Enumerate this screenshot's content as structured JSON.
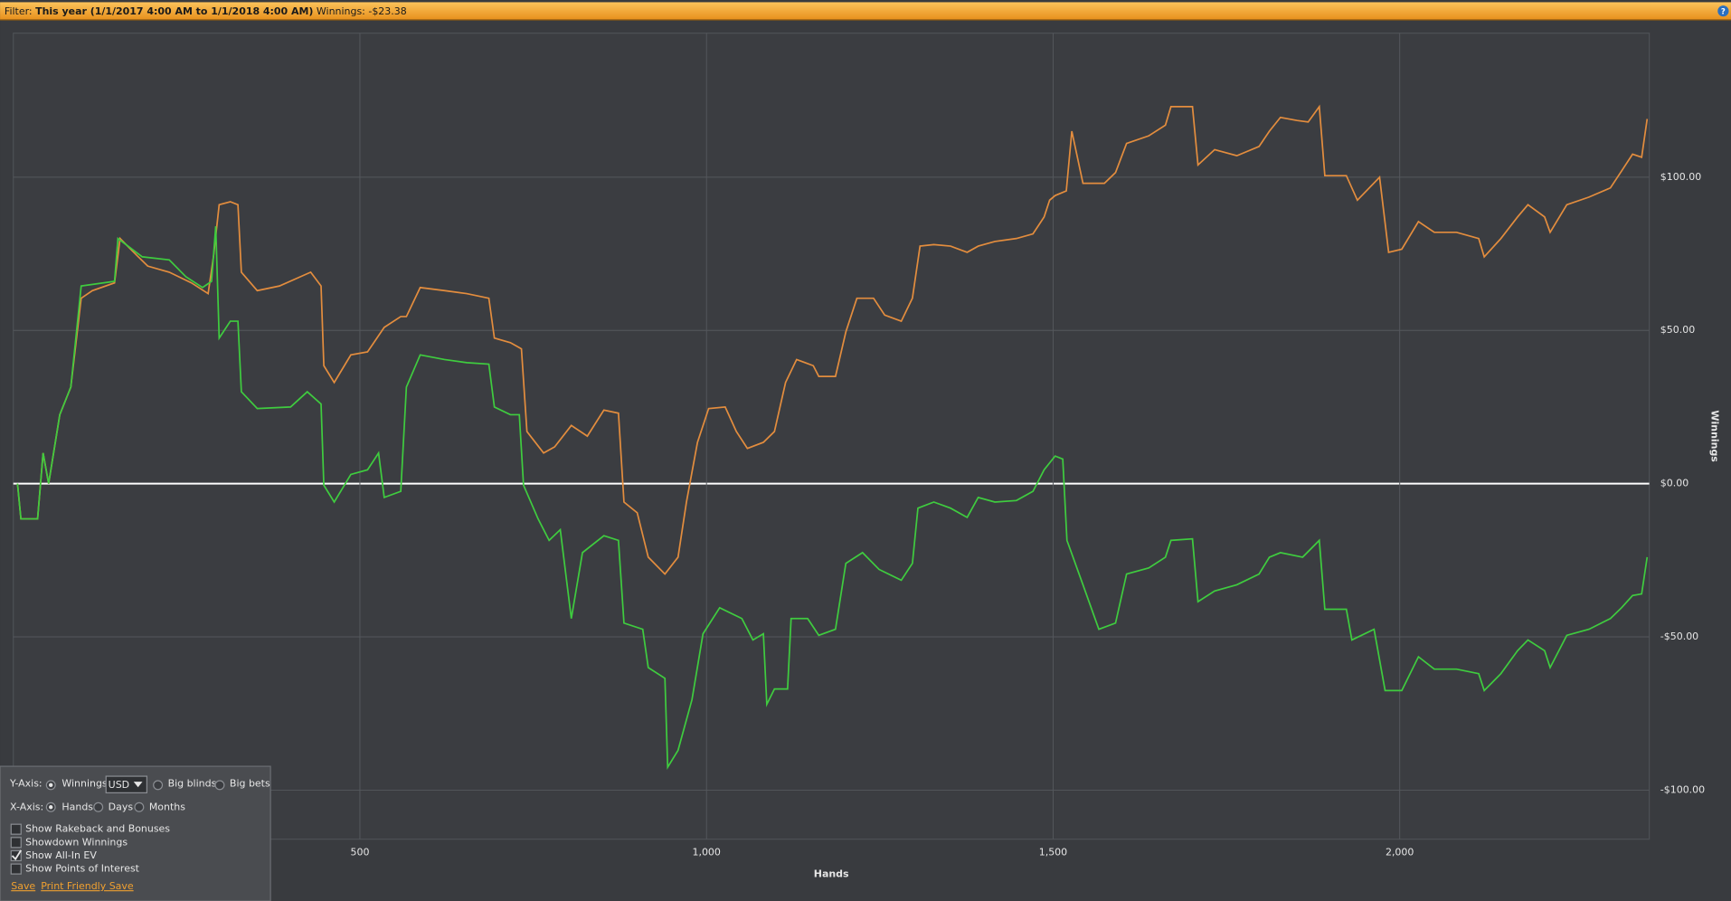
{
  "filter_bar": {
    "filter_label": "Filter:",
    "range": "This year (1/1/2017 4:00 AM to 1/1/2018 4:00 AM)",
    "winnings_label": "Winnings:",
    "winnings": "-$23.38"
  },
  "chart_data": {
    "type": "line",
    "x_label": "Hands",
    "y_label": "Winnings",
    "xlim": [
      0,
      2360
    ],
    "ylim": [
      -116,
      147
    ],
    "xticks": [
      500,
      {
        "value": 1000,
        "label": "1,000"
      },
      {
        "value": 1500,
        "label": "1,500"
      },
      {
        "value": 2000,
        "label": "2,000"
      }
    ],
    "yticks": [
      {
        "value": -100,
        "label": "-$100.00"
      },
      {
        "value": -50,
        "label": "-$50.00"
      },
      {
        "value": 0,
        "label": "$0.00"
      },
      {
        "value": 50,
        "label": "$50.00"
      },
      {
        "value": 100,
        "label": "$100.00"
      }
    ],
    "grid": true,
    "series": [
      {
        "color": "#e38d3e",
        "x": [
          6,
          11,
          35,
          43,
          51,
          67,
          83,
          98,
          114,
          146,
          154,
          178,
          194,
          225,
          257,
          281,
          289,
          297,
          313,
          324,
          329,
          352,
          384,
          429,
          444,
          448,
          463,
          487,
          511,
          535,
          559,
          567,
          587,
          622,
          654,
          686,
          694,
          717,
          733,
          741,
          765,
          781,
          805,
          828,
          852,
          873,
          881,
          900,
          916,
          940,
          959,
          971,
          987,
          1003,
          1027,
          1043,
          1059,
          1082,
          1098,
          1114,
          1130,
          1154,
          1162,
          1186,
          1201,
          1217,
          1241,
          1257,
          1281,
          1297,
          1308,
          1328,
          1352,
          1376,
          1392,
          1416,
          1447,
          1471,
          1487,
          1495,
          1503,
          1519,
          1527,
          1543,
          1574,
          1590,
          1606,
          1638,
          1662,
          1670,
          1701,
          1709,
          1733,
          1765,
          1797,
          1812,
          1828,
          1852,
          1868,
          1884,
          1892,
          1923,
          1939,
          1971,
          1984,
          2003,
          2027,
          2050,
          2082,
          2114,
          2122,
          2146,
          2170,
          2185,
          2209,
          2217,
          2241,
          2273,
          2304,
          2320,
          2336,
          2349,
          2357
        ],
        "values": [
          0,
          -11.5,
          -11.5,
          10,
          0,
          22.5,
          31.5,
          60.5,
          63,
          65.5,
          80,
          74.5,
          71,
          69,
          65.5,
          62,
          74.5,
          91,
          92,
          91,
          69,
          63,
          64.5,
          69,
          64.5,
          38.5,
          33,
          42,
          43,
          51,
          54.5,
          54.5,
          64,
          63,
          62,
          60.5,
          47.5,
          46,
          44,
          17,
          10,
          12,
          19,
          15.5,
          24,
          23,
          -6,
          -9.5,
          -24,
          -29.5,
          -24,
          -6,
          13.5,
          24.5,
          25,
          17,
          11.5,
          13.5,
          17,
          33,
          40.5,
          38.5,
          35,
          35,
          49.5,
          60.5,
          60.5,
          55,
          53,
          60.5,
          77.5,
          78,
          77.5,
          75.5,
          77.5,
          79,
          80,
          81.5,
          87,
          92.5,
          94,
          95.5,
          115,
          98,
          98,
          101.5,
          111,
          113.5,
          117,
          123,
          123,
          104,
          109,
          107,
          110,
          115,
          119.5,
          118.5,
          118,
          123,
          100.5,
          100.5,
          92.5,
          100,
          75.5,
          76.5,
          85.5,
          82,
          82,
          80,
          74,
          80,
          87,
          91,
          87,
          82,
          91,
          93.5,
          96.5,
          102,
          107.5,
          106.5,
          119
        ]
      },
      {
        "color": "#3fcc3f",
        "x": [
          6,
          11,
          35,
          43,
          51,
          67,
          83,
          98,
          146,
          151,
          186,
          225,
          249,
          273,
          286,
          292,
          297,
          313,
          324,
          329,
          352,
          400,
          424,
          444,
          448,
          463,
          487,
          511,
          527,
          535,
          559,
          567,
          587,
          622,
          654,
          686,
          694,
          717,
          730,
          736,
          757,
          773,
          789,
          805,
          821,
          852,
          873,
          881,
          908,
          916,
          940,
          944,
          959,
          979,
          995,
          1019,
          1051,
          1067,
          1082,
          1087,
          1098,
          1117,
          1122,
          1146,
          1162,
          1186,
          1201,
          1225,
          1249,
          1281,
          1297,
          1305,
          1328,
          1352,
          1376,
          1392,
          1416,
          1447,
          1471,
          1487,
          1503,
          1514,
          1520,
          1543,
          1566,
          1590,
          1606,
          1638,
          1662,
          1670,
          1701,
          1709,
          1733,
          1765,
          1797,
          1812,
          1828,
          1860,
          1884,
          1892,
          1923,
          1931,
          1963,
          1979,
          2003,
          2027,
          2050,
          2082,
          2114,
          2122,
          2146,
          2170,
          2185,
          2209,
          2217,
          2241,
          2273,
          2304,
          2320,
          2336,
          2349,
          2357
        ],
        "values": [
          0,
          -11.5,
          -11.5,
          10,
          0,
          22.5,
          31.5,
          64.5,
          66,
          80,
          74,
          73,
          67.5,
          64,
          66,
          84,
          47.5,
          53,
          53,
          30,
          24.5,
          25,
          30,
          26,
          -0.5,
          -6,
          3,
          4.5,
          10,
          -4.5,
          -2.5,
          31.5,
          42,
          40.5,
          39.5,
          39,
          25,
          22.5,
          22.5,
          -0.5,
          -11.5,
          -18.5,
          -15,
          -44,
          -22.5,
          -17,
          -18.5,
          -45.5,
          -47.5,
          -60,
          -63.5,
          -92.5,
          -87,
          -70.5,
          -49,
          -40.5,
          -44,
          -51,
          -49,
          -72,
          -67,
          -67,
          -44,
          -44,
          -49.5,
          -47.5,
          -26,
          -22.5,
          -28,
          -31.5,
          -26,
          -8,
          -6,
          -8,
          -11,
          -4.5,
          -6,
          -5.5,
          -2.5,
          4.5,
          9,
          8,
          -18.5,
          -33,
          -47.5,
          -45.5,
          -29.5,
          -27.5,
          -24,
          -18.5,
          -18,
          -38.5,
          -35,
          -33,
          -29.5,
          -24,
          -22.5,
          -24,
          -18.5,
          -41,
          -41,
          -51,
          -47.5,
          -67.5,
          -67.5,
          -56.5,
          -60.5,
          -60.5,
          -62,
          -67.5,
          -62,
          -54.5,
          -51,
          -54.5,
          -60,
          -49.5,
          -47.5,
          -44,
          -40.5,
          -36.5,
          -36,
          -24
        ]
      }
    ]
  },
  "controls": {
    "y_axis": {
      "label": "Y-Axis:",
      "options": [
        "Winnings",
        "Big blinds",
        "Big bets"
      ],
      "selected": 0,
      "currency": "USD"
    },
    "x_axis": {
      "label": "X-Axis:",
      "options": [
        "Hands",
        "Days",
        "Months"
      ],
      "selected": 0
    },
    "checkboxes": [
      {
        "label": "Show Rakeback and Bonuses",
        "checked": false
      },
      {
        "label": "Showdown Winnings",
        "checked": false
      },
      {
        "label": "Show All-In EV",
        "checked": true
      },
      {
        "label": "Show Points of Interest",
        "checked": false
      }
    ],
    "links": [
      "Save",
      "Print Friendly Save"
    ]
  }
}
